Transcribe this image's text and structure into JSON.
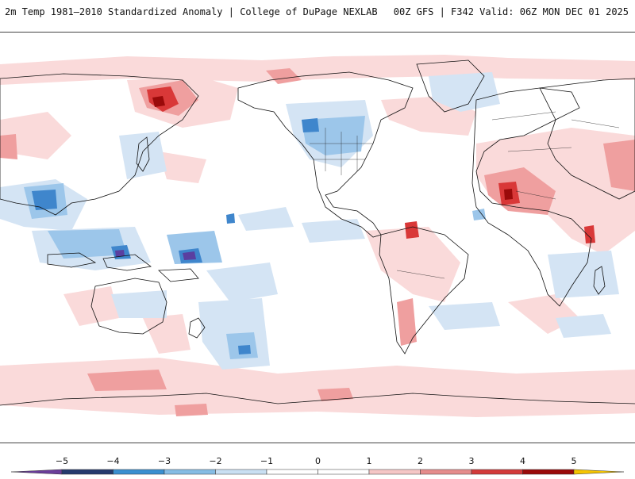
{
  "header": {
    "title_left": "2m Temp 1981–2010 Standardized Anomaly | College of DuPage NEXLAB",
    "title_right": "00Z GFS | F342 Valid: 06Z MON DEC 01 2025"
  },
  "colorbar": {
    "ticks": [
      "−5",
      "−4",
      "−3",
      "−2",
      "−1",
      "0",
      "1",
      "2",
      "3",
      "4",
      "5"
    ],
    "colors": [
      "#6a3d9a",
      "#253a6e",
      "#3a8fd0",
      "#86bce4",
      "#c9dff2",
      "#ffffff",
      "#ffffff",
      "#f5c6c6",
      "#e58c8c",
      "#d33a3a",
      "#9a0a0a",
      "#f5c400"
    ]
  },
  "colors": {
    "cold_light": "#d4e4f4",
    "cold_mid": "#9cc6ea",
    "cold_strong": "#3f86cc",
    "cold_extreme": "#5a3fa0",
    "warm_light": "#fadada",
    "warm_mid": "#ef9f9f",
    "warm_strong": "#d93838",
    "warm_extreme": "#9a0a0a",
    "coast": "#111111"
  }
}
